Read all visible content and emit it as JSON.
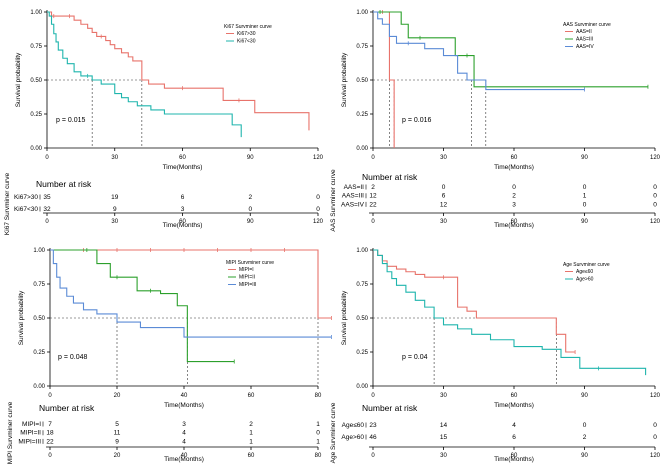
{
  "chart_data": [
    {
      "type": "line",
      "title": "Ki67 Survminer curve",
      "xlabel": "Time(Months)",
      "ylabel": "Survival probability",
      "xlim": [
        0,
        120
      ],
      "ylim": [
        0,
        1
      ],
      "xticks": [
        "0",
        "30",
        "60",
        "90",
        "120"
      ],
      "yticks": [
        "0.00",
        "0.25",
        "0.50",
        "0.75",
        "1.00"
      ],
      "pvalue": "p = 0.015",
      "medians": [
        20,
        42
      ],
      "series": [
        {
          "name": "Ki67>30",
          "color": "#e8736b",
          "x": [
            0,
            2,
            3,
            10,
            12,
            15,
            18,
            20,
            22,
            24,
            26,
            28,
            30,
            33,
            36,
            38,
            42,
            45,
            52,
            60,
            78,
            85,
            92,
            116
          ],
          "y": [
            1,
            0.97,
            0.97,
            0.97,
            0.94,
            0.91,
            0.88,
            0.85,
            0.82,
            0.82,
            0.79,
            0.76,
            0.73,
            0.7,
            0.67,
            0.64,
            0.5,
            0.47,
            0.44,
            0.44,
            0.35,
            0.35,
            0.26,
            0.13
          ]
        },
        {
          "name": "Ki67<30",
          "color": "#1fb5ad",
          "x": [
            0,
            1,
            2,
            3,
            4,
            5,
            7,
            9,
            12,
            15,
            18,
            20,
            24,
            30,
            33,
            36,
            40,
            46,
            52,
            82,
            86
          ],
          "y": [
            1,
            0.97,
            0.91,
            0.84,
            0.78,
            0.72,
            0.66,
            0.62,
            0.56,
            0.53,
            0.53,
            0.5,
            0.47,
            0.4,
            0.37,
            0.34,
            0.31,
            0.28,
            0.25,
            0.17,
            0.08
          ]
        }
      ],
      "risk_title": "Number at risk",
      "risk_ylabel": "Ki67 Survminer curve",
      "risk_rows": [
        {
          "label": "Ki67>30",
          "color": "#e8736b",
          "values": [
            "35",
            "19",
            "6",
            "2",
            "0"
          ]
        },
        {
          "label": "Ki67<30",
          "color": "#1fb5ad",
          "values": [
            "32",
            "9",
            "3",
            "0",
            "0"
          ]
        }
      ]
    },
    {
      "type": "line",
      "title": "AAS Survminer curve",
      "xlabel": "Time(Months)",
      "ylabel": "Survival probability",
      "xlim": [
        0,
        120
      ],
      "ylim": [
        0,
        1
      ],
      "xticks": [
        "0",
        "30",
        "60",
        "90",
        "120"
      ],
      "yticks": [
        "0.00",
        "0.25",
        "0.50",
        "0.75",
        "1.00"
      ],
      "pvalue": "p = 0.016",
      "medians": [
        7,
        9,
        42,
        48
      ],
      "series": [
        {
          "name": "AAS=II",
          "color": "#e8736b",
          "x": [
            0,
            4,
            7,
            9
          ],
          "y": [
            1,
            1,
            0.5,
            0
          ]
        },
        {
          "name": "AAS=III",
          "color": "#2ca02c",
          "x": [
            0,
            3,
            12,
            15,
            20,
            35,
            40,
            43,
            117
          ],
          "y": [
            1,
            1,
            0.91,
            0.81,
            0.81,
            0.68,
            0.68,
            0.45,
            0.45
          ]
        },
        {
          "name": "AAS=IV",
          "color": "#5b8bd6",
          "x": [
            0,
            2,
            4,
            7,
            10,
            15,
            22,
            30,
            36,
            40,
            48,
            90
          ],
          "y": [
            1,
            0.95,
            0.91,
            0.82,
            0.77,
            0.77,
            0.73,
            0.68,
            0.55,
            0.5,
            0.43,
            0.43
          ]
        }
      ],
      "risk_title": "Number at risk",
      "risk_ylabel": "AAS Survminer curve",
      "risk_rows": [
        {
          "label": "AAS=II",
          "color": "#e8736b",
          "values": [
            "2",
            "0",
            "0",
            "0",
            "0"
          ]
        },
        {
          "label": "AAS=III",
          "color": "#2ca02c",
          "values": [
            "12",
            "6",
            "2",
            "1",
            "0"
          ]
        },
        {
          "label": "AAS=IV",
          "color": "#5b8bd6",
          "values": [
            "22",
            "12",
            "3",
            "0",
            "0"
          ]
        }
      ]
    },
    {
      "type": "line",
      "title": "MIPI Survminer curve",
      "xlabel": "Time(Months)",
      "ylabel": "Survival probability",
      "xlim": [
        0,
        80
      ],
      "ylim": [
        0,
        1
      ],
      "xticks": [
        "0",
        "20",
        "40",
        "60",
        "80"
      ],
      "yticks": [
        "0.00",
        "0.25",
        "0.50",
        "0.75",
        "1.00"
      ],
      "pvalue": "p = 0.048",
      "medians": [
        20,
        41,
        80
      ],
      "series": [
        {
          "name": "MIPI=I",
          "color": "#e8736b",
          "x": [
            0,
            10,
            20,
            30,
            40,
            50,
            60,
            70,
            80,
            84
          ],
          "y": [
            1,
            1,
            1,
            1,
            1,
            1,
            1,
            1,
            0.5,
            0.5
          ]
        },
        {
          "name": "MIPI=II",
          "color": "#2ca02c",
          "x": [
            0,
            11,
            14,
            18,
            20,
            26,
            30,
            33,
            38,
            41,
            55
          ],
          "y": [
            1,
            1,
            0.9,
            0.8,
            0.8,
            0.7,
            0.7,
            0.68,
            0.59,
            0.18,
            0.18
          ]
        },
        {
          "name": "MIPI=III",
          "color": "#5b8bd6",
          "x": [
            0,
            1,
            2,
            3,
            5,
            7,
            10,
            14,
            20,
            27,
            40,
            84
          ],
          "y": [
            1,
            0.9,
            0.8,
            0.72,
            0.66,
            0.61,
            0.56,
            0.53,
            0.47,
            0.43,
            0.36,
            0.36
          ]
        }
      ],
      "risk_title": "Number at risk",
      "risk_ylabel": "MIPI Survminer curve",
      "risk_rows": [
        {
          "label": "MIPI=I",
          "color": "#e8736b",
          "values": [
            "7",
            "5",
            "3",
            "2",
            "1"
          ]
        },
        {
          "label": "MIPI=II",
          "color": "#2ca02c",
          "values": [
            "18",
            "11",
            "4",
            "1",
            "0"
          ]
        },
        {
          "label": "MIPI=III",
          "color": "#5b8bd6",
          "values": [
            "22",
            "9",
            "4",
            "1",
            "1"
          ]
        }
      ]
    },
    {
      "type": "line",
      "title": "Age Survminer curve",
      "xlabel": "Time(Months)",
      "ylabel": "Survival probability",
      "xlim": [
        0,
        120
      ],
      "ylim": [
        0,
        1
      ],
      "xticks": [
        "0",
        "30",
        "60",
        "90",
        "120"
      ],
      "yticks": [
        "0.00",
        "0.25",
        "0.50",
        "0.75",
        "1.00"
      ],
      "pvalue": "p = 0.04",
      "medians": [
        26,
        78
      ],
      "series": [
        {
          "name": "Age≤60",
          "color": "#e8736b",
          "x": [
            0,
            2,
            4,
            6,
            10,
            14,
            18,
            22,
            30,
            36,
            40,
            44,
            78,
            82,
            86
          ],
          "y": [
            1,
            0.96,
            0.92,
            0.88,
            0.86,
            0.84,
            0.82,
            0.8,
            0.8,
            0.58,
            0.55,
            0.5,
            0.38,
            0.25,
            0.25
          ]
        },
        {
          "name": "Age>60",
          "color": "#1fb5ad",
          "x": [
            0,
            2,
            4,
            6,
            8,
            10,
            14,
            18,
            22,
            26,
            30,
            36,
            42,
            50,
            60,
            72,
            80,
            88,
            96,
            116
          ],
          "y": [
            1,
            0.96,
            0.9,
            0.84,
            0.79,
            0.74,
            0.69,
            0.63,
            0.58,
            0.5,
            0.45,
            0.42,
            0.38,
            0.34,
            0.29,
            0.27,
            0.21,
            0.13,
            0.13,
            0.08
          ]
        }
      ],
      "risk_title": "Number at risk",
      "risk_ylabel": "Age Survminer curve",
      "risk_rows": [
        {
          "label": "Age≤60",
          "color": "#e8736b",
          "values": [
            "23",
            "14",
            "4",
            "0",
            "0"
          ]
        },
        {
          "label": "Age>60",
          "color": "#1fb5ad",
          "values": [
            "46",
            "15",
            "6",
            "2",
            "0"
          ]
        }
      ]
    }
  ]
}
